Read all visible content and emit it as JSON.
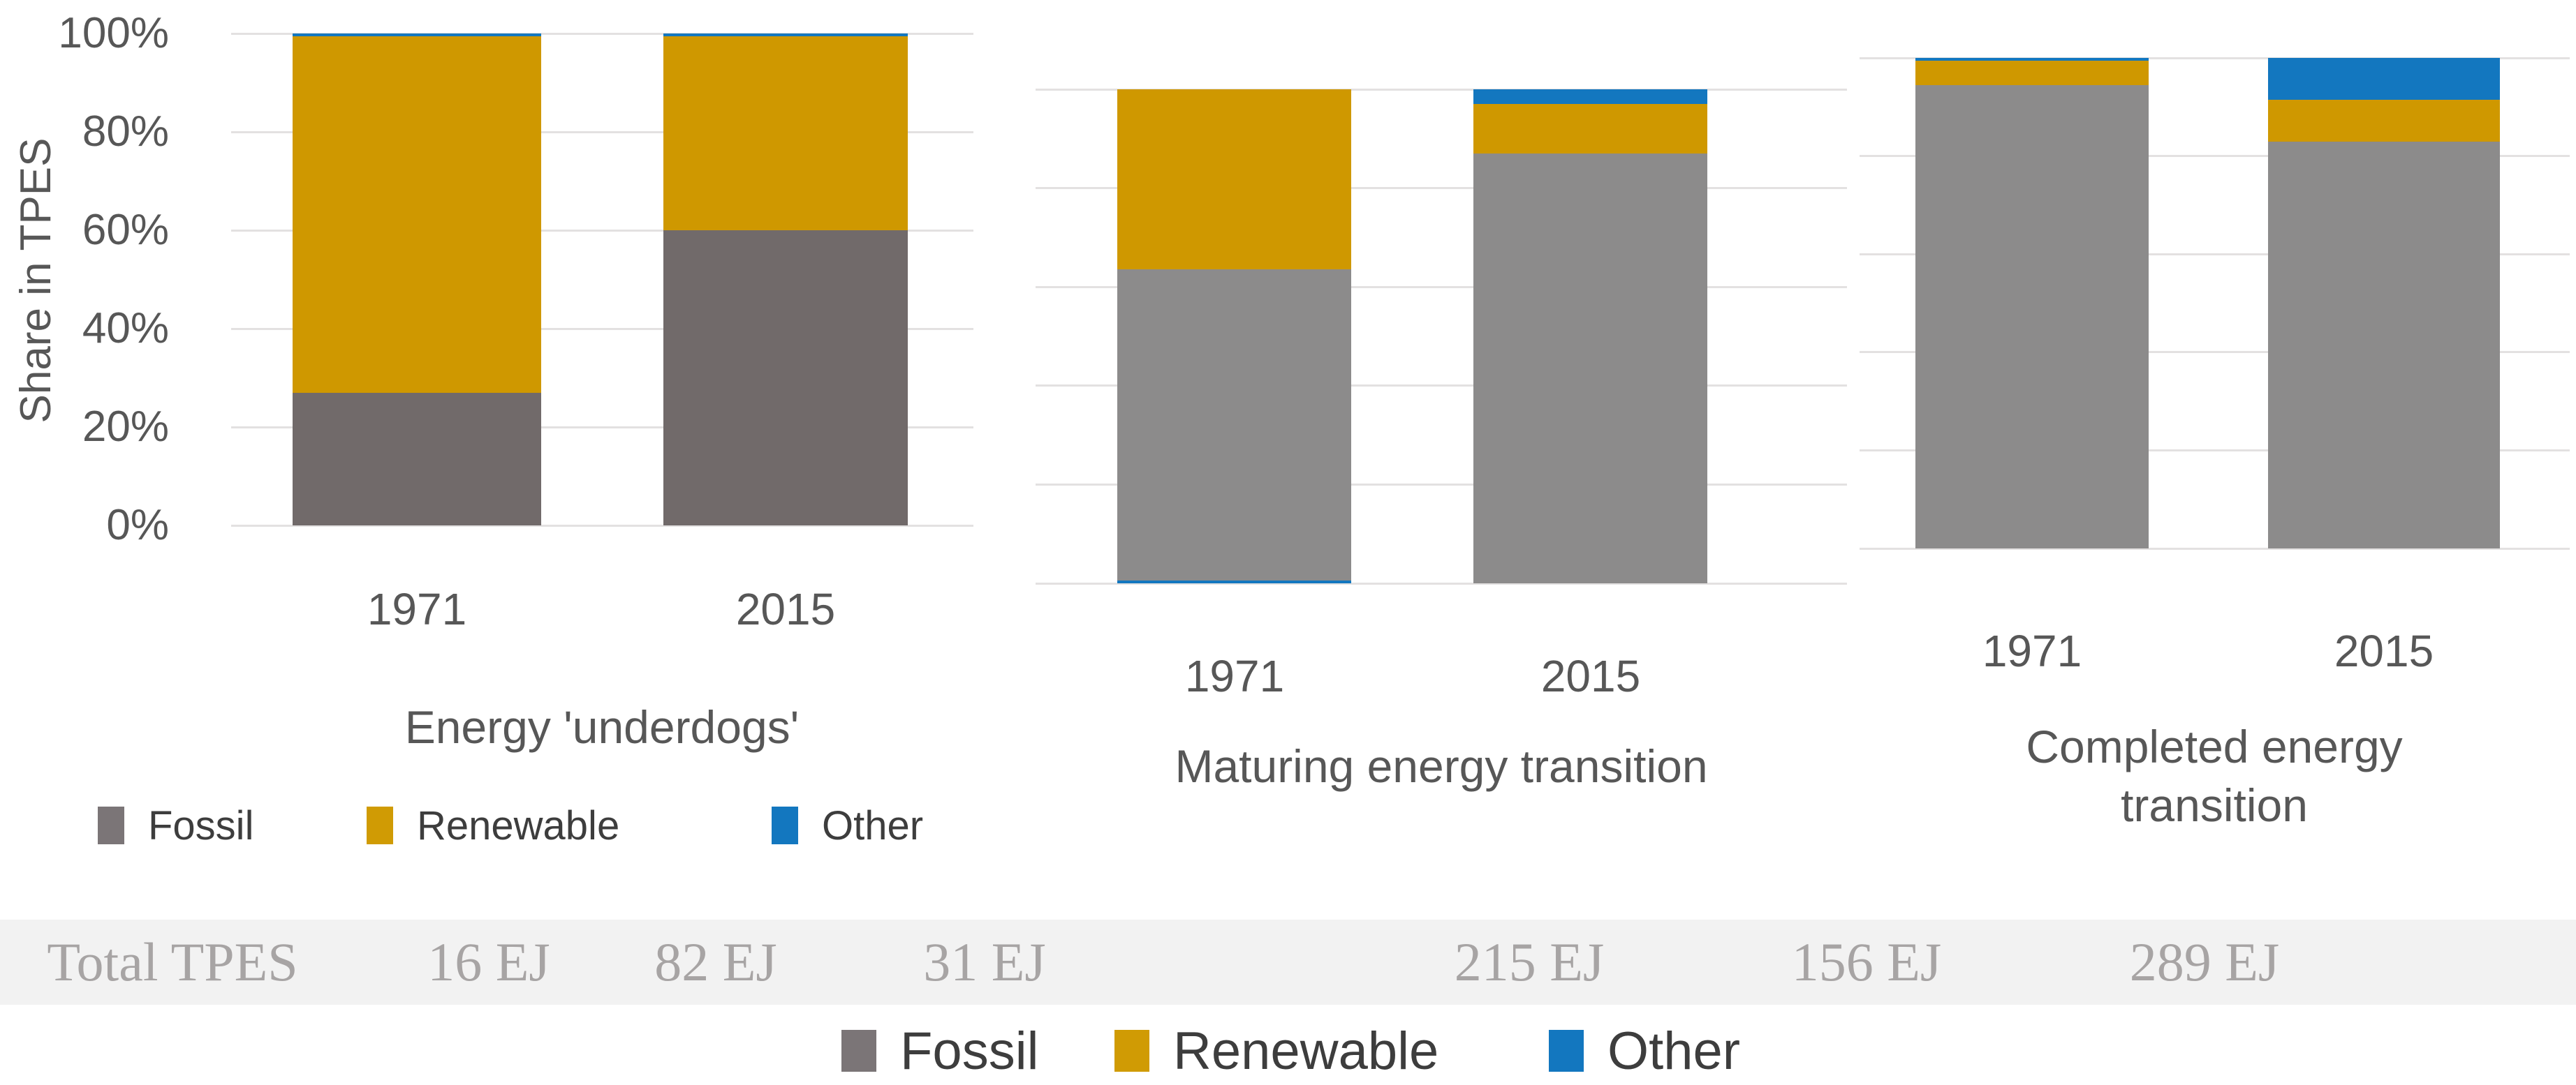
{
  "y_axis": {
    "title": "Share in TPES",
    "ticks": [
      "100%",
      "80%",
      "60%",
      "40%",
      "20%",
      "0%"
    ]
  },
  "charts": [
    {
      "id": "underdogs",
      "title": "Energy 'underdogs'",
      "categories": [
        "1971",
        "2015"
      ],
      "bars": [
        {
          "category": "1971",
          "segments": [
            {
              "series": "Fossil",
              "value": 27
            },
            {
              "series": "Renewable",
              "value": 72.5
            },
            {
              "series": "Other",
              "value": 0.5
            }
          ]
        },
        {
          "category": "2015",
          "segments": [
            {
              "series": "Fossil",
              "value": 60
            },
            {
              "series": "Renewable",
              "value": 39.5
            },
            {
              "series": "Other",
              "value": 0.5
            }
          ]
        }
      ]
    },
    {
      "id": "maturing",
      "title": "Maturing energy transition",
      "categories": [
        "1971",
        "2015"
      ],
      "bars": [
        {
          "category": "1971",
          "segments": [
            {
              "series": "Other",
              "value": 0.5
            },
            {
              "series": "Fossil",
              "value": 63
            },
            {
              "series": "Renewable",
              "value": 36.5
            }
          ]
        },
        {
          "category": "2015",
          "segments": [
            {
              "series": "Fossil",
              "value": 87
            },
            {
              "series": "Renewable",
              "value": 10
            },
            {
              "series": "Other",
              "value": 3
            }
          ]
        }
      ]
    },
    {
      "id": "completed",
      "title": "Completed energy\ntransition",
      "categories": [
        "1971",
        "2015"
      ],
      "bars": [
        {
          "category": "1971",
          "segments": [
            {
              "series": "Fossil",
              "value": 94.5
            },
            {
              "series": "Renewable",
              "value": 5
            },
            {
              "series": "Other",
              "value": 0.5
            }
          ]
        },
        {
          "category": "2015",
          "segments": [
            {
              "series": "Fossil",
              "value": 83
            },
            {
              "series": "Renewable",
              "value": 8.5
            },
            {
              "series": "Other",
              "value": 8.5
            }
          ]
        }
      ]
    }
  ],
  "totals_row": {
    "label": "Total TPES",
    "values": [
      "16 EJ",
      "82 EJ",
      "31 EJ",
      "215 EJ",
      "156 EJ",
      "289 EJ"
    ]
  },
  "legend": {
    "items": [
      {
        "label": "Fossil",
        "color": "#7B7577"
      },
      {
        "label": "Renewable",
        "color": "#D09B04"
      },
      {
        "label": "Other",
        "color": "#1377BF"
      }
    ]
  },
  "colors": {
    "fossil_chart1": "#716A6A",
    "fossil_charts23": "#8C8B8B",
    "renewable": "#CF9800",
    "other": "#1377BF",
    "gridline": "#E3E1E1",
    "axis_text": "#575757",
    "title_text": "#575757",
    "tpes_band_bg": "#F2F2F2",
    "tpes_text": "#A7A4A4",
    "legend_text": "#3D3D3D"
  },
  "chart_data": [
    {
      "type": "bar",
      "subtype": "stacked-100-percent",
      "title": "Energy 'underdogs'",
      "categories": [
        "1971",
        "2015"
      ],
      "series": [
        {
          "name": "Fossil",
          "values": [
            27,
            60
          ]
        },
        {
          "name": "Renewable",
          "values": [
            72.5,
            39.5
          ]
        },
        {
          "name": "Other",
          "values": [
            0.5,
            0.5
          ]
        }
      ],
      "ylabel": "Share in TPES",
      "ylim": [
        0,
        100
      ],
      "yticks": [
        "0%",
        "20%",
        "40%",
        "60%",
        "80%",
        "100%"
      ],
      "grid": true,
      "legend_position": "below-chart",
      "total_tpes": [
        "16 EJ",
        "82 EJ"
      ]
    },
    {
      "type": "bar",
      "subtype": "stacked-100-percent",
      "title": "Maturing energy transition",
      "categories": [
        "1971",
        "2015"
      ],
      "series": [
        {
          "name": "Fossil",
          "values": [
            63,
            87
          ]
        },
        {
          "name": "Renewable",
          "values": [
            36.5,
            10
          ]
        },
        {
          "name": "Other",
          "values": [
            0.5,
            3
          ]
        }
      ],
      "ylabel": "",
      "ylim": [
        0,
        100
      ],
      "grid": true,
      "note": "1971 Other segment is drawn at the bottom of the stack",
      "total_tpes": [
        "31 EJ",
        "215 EJ"
      ]
    },
    {
      "type": "bar",
      "subtype": "stacked-100-percent",
      "title": "Completed energy transition",
      "categories": [
        "1971",
        "2015"
      ],
      "series": [
        {
          "name": "Fossil",
          "values": [
            94.5,
            83
          ]
        },
        {
          "name": "Renewable",
          "values": [
            5,
            8.5
          ]
        },
        {
          "name": "Other",
          "values": [
            0.5,
            8.5
          ]
        }
      ],
      "ylabel": "",
      "ylim": [
        0,
        100
      ],
      "grid": true,
      "total_tpes": [
        "156 EJ",
        "289 EJ"
      ]
    }
  ]
}
